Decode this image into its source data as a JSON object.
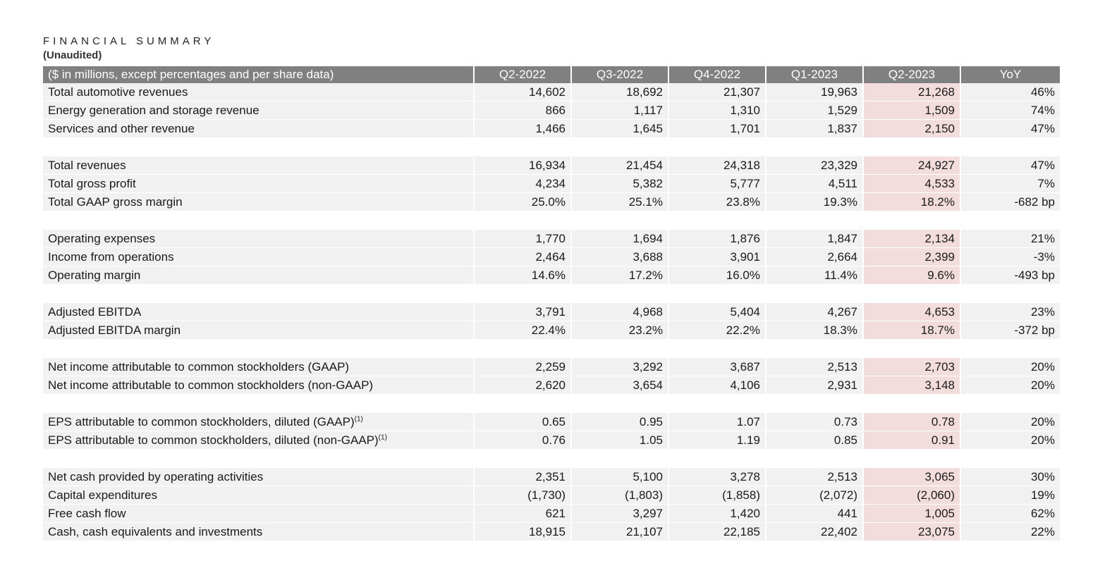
{
  "header": {
    "title": "FINANCIAL SUMMARY",
    "subtitle": "(Unaudited)"
  },
  "table": {
    "headers": [
      "($ in millions, except percentages and per share data)",
      "Q2-2022",
      "Q3-2022",
      "Q4-2022",
      "Q1-2023",
      "Q2-2023",
      "YoY"
    ],
    "highlight_column": "Q2-2023",
    "highlight_color": "#f3dcdc",
    "header_color": "#808080",
    "groups": [
      [
        {
          "label": "Total automotive revenues",
          "values": [
            "14,602",
            "18,692",
            "21,307",
            "19,963",
            "21,268",
            "46%"
          ]
        },
        {
          "label": "Energy generation and storage revenue",
          "values": [
            "866",
            "1,117",
            "1,310",
            "1,529",
            "1,509",
            "74%"
          ]
        },
        {
          "label": "Services and other revenue",
          "values": [
            "1,466",
            "1,645",
            "1,701",
            "1,837",
            "2,150",
            "47%"
          ]
        }
      ],
      [
        {
          "label": "Total revenues",
          "values": [
            "16,934",
            "21,454",
            "24,318",
            "23,329",
            "24,927",
            "47%"
          ]
        },
        {
          "label": "Total gross profit",
          "values": [
            "4,234",
            "5,382",
            "5,777",
            "4,511",
            "4,533",
            "7%"
          ]
        },
        {
          "label": "Total GAAP gross margin",
          "values": [
            "25.0%",
            "25.1%",
            "23.8%",
            "19.3%",
            "18.2%",
            "-682 bp"
          ]
        }
      ],
      [
        {
          "label": "Operating expenses",
          "values": [
            "1,770",
            "1,694",
            "1,876",
            "1,847",
            "2,134",
            "21%"
          ]
        },
        {
          "label": "Income from operations",
          "values": [
            "2,464",
            "3,688",
            "3,901",
            "2,664",
            "2,399",
            "-3%"
          ]
        },
        {
          "label": "Operating margin",
          "values": [
            "14.6%",
            "17.2%",
            "16.0%",
            "11.4%",
            "9.6%",
            "-493 bp"
          ]
        }
      ],
      [
        {
          "label": "Adjusted EBITDA",
          "values": [
            "3,791",
            "4,968",
            "5,404",
            "4,267",
            "4,653",
            "23%"
          ]
        },
        {
          "label": "Adjusted EBITDA margin",
          "values": [
            "22.4%",
            "23.2%",
            "22.2%",
            "18.3%",
            "18.7%",
            "-372 bp"
          ]
        }
      ],
      [
        {
          "label": "Net income attributable to common stockholders (GAAP)",
          "values": [
            "2,259",
            "3,292",
            "3,687",
            "2,513",
            "2,703",
            "20%"
          ]
        },
        {
          "label": "Net income attributable to common stockholders (non-GAAP)",
          "values": [
            "2,620",
            "3,654",
            "4,106",
            "2,931",
            "3,148",
            "20%"
          ]
        }
      ],
      [
        {
          "label": "EPS attributable to common stockholders, diluted (GAAP)",
          "footnote": "(1)",
          "values": [
            "0.65",
            "0.95",
            "1.07",
            "0.73",
            "0.78",
            "20%"
          ]
        },
        {
          "label": "EPS attributable to common stockholders, diluted (non-GAAP)",
          "footnote": "(1)",
          "values": [
            "0.76",
            "1.05",
            "1.19",
            "0.85",
            "0.91",
            "20%"
          ]
        }
      ],
      [
        {
          "label": "Net cash provided by operating activities",
          "values": [
            "2,351",
            "5,100",
            "3,278",
            "2,513",
            "3,065",
            "30%"
          ]
        },
        {
          "label": "Capital expenditures",
          "values": [
            "(1,730)",
            "(1,803)",
            "(1,858)",
            "(2,072)",
            "(2,060)",
            "19%"
          ]
        },
        {
          "label": "Free cash flow",
          "values": [
            "621",
            "3,297",
            "1,420",
            "441",
            "1,005",
            "62%"
          ]
        },
        {
          "label": "Cash, cash equivalents and investments",
          "values": [
            "18,915",
            "21,107",
            "22,185",
            "22,402",
            "23,075",
            "22%"
          ]
        }
      ]
    ]
  }
}
